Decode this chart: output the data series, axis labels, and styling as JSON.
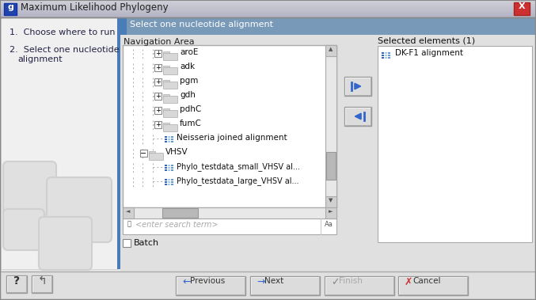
{
  "title": "Maximum Likelihood Phylogeny",
  "bg_color": "#e8e8e8",
  "left_panel_bg": "#f0f0f0",
  "title_bar_top": "#c8c8d0",
  "title_bar_bottom": "#a8a8b8",
  "blue_strip": "#4a7cb8",
  "close_red": "#c04040",
  "header_strip_color": "#8aaabf",
  "header_text": "Select one nucleotide alignment",
  "nav_area_label": "Navigation Area",
  "selected_elements_label": "Selected elements (1)",
  "tree_items": [
    "aroE",
    "adk",
    "pgm",
    "gdh",
    "pdhC",
    "fumC",
    "Neisseria joined alignment",
    "VHSV",
    "Phylo_testdata_small_VHSV al...",
    "Phylo_testdata_large_VHSV al...",
    "DK-F1 alignment"
  ],
  "selected_item_right": "DK-F1 alignment",
  "search_placeholder": "<enter search term>",
  "batch_label": "Batch",
  "buttons": [
    "Previous",
    "Next",
    "Finish",
    "Cancel"
  ],
  "left_text_color": "#222244",
  "folder_color": "#c8c8c8",
  "align_icon_blue": "#3366bb",
  "selected_blue": "#2288ee",
  "btn_gray": "#dcdcdc"
}
